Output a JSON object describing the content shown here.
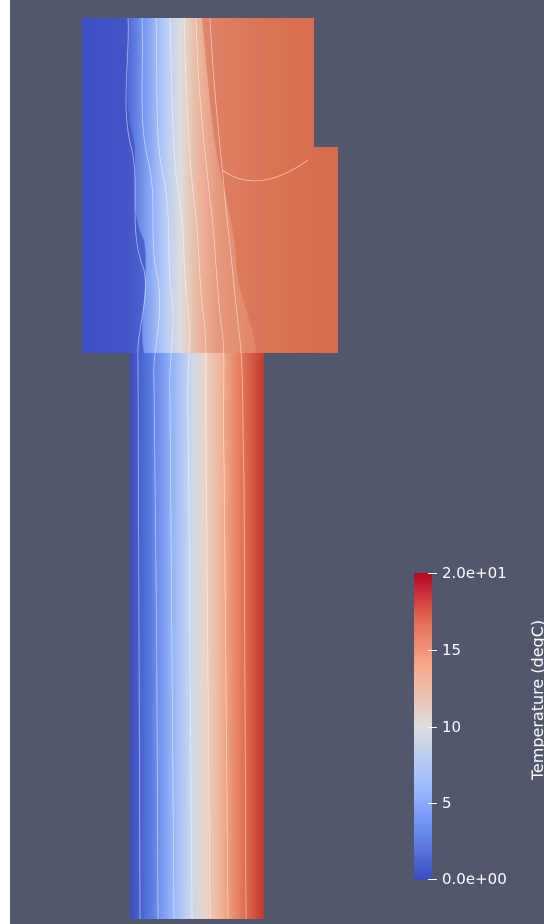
{
  "scalar_bar": {
    "title": "Temperature (degC)",
    "max_label": "2.0e+01",
    "label_15": "15",
    "label_10": "10",
    "label_5": "5",
    "min_label": "0.0e+00",
    "range": [
      0,
      20
    ],
    "colormap": "Cool to Warm",
    "colors": {
      "min": "#3b4cc0",
      "mid": "#dddddd",
      "max": "#b40426"
    }
  },
  "viewport": {
    "background": "#52576e"
  }
}
